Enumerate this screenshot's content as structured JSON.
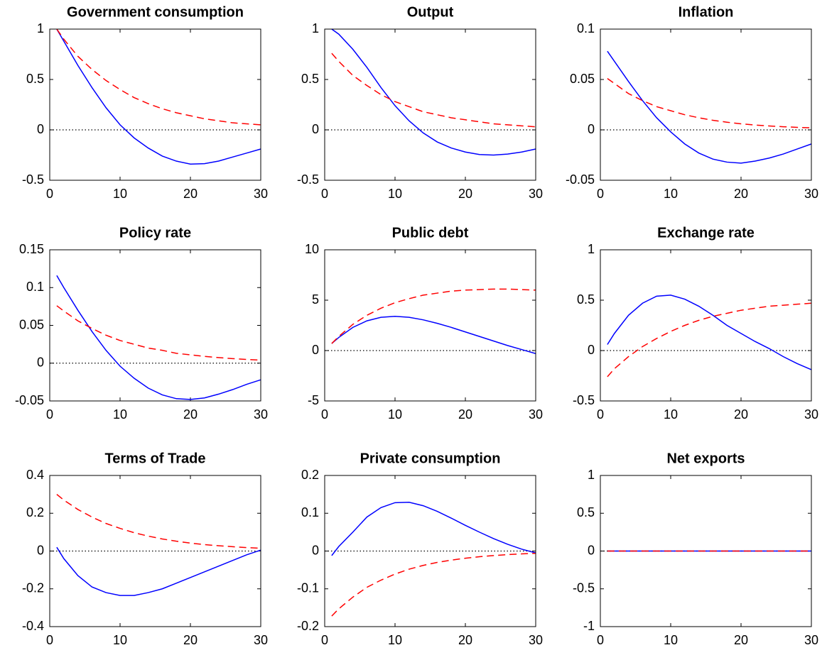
{
  "chart_data": [
    {
      "type": "line",
      "title": "Government consumption",
      "x": [
        1,
        2,
        4,
        6,
        8,
        10,
        12,
        14,
        16,
        18,
        20,
        22,
        24,
        26,
        28,
        30
      ],
      "series": [
        {
          "color": "#0000ff",
          "linestyle": "solid",
          "values": [
            1,
            0.88,
            0.64,
            0.42,
            0.22,
            0.05,
            -0.08,
            -0.18,
            -0.26,
            -0.31,
            -0.34,
            -0.335,
            -0.31,
            -0.27,
            -0.23,
            -0.19
          ]
        },
        {
          "color": "#ff0000",
          "linestyle": "dashed",
          "values": [
            1,
            0.9,
            0.73,
            0.6,
            0.49,
            0.4,
            0.32,
            0.26,
            0.21,
            0.17,
            0.14,
            0.11,
            0.09,
            0.07,
            0.06,
            0.05
          ]
        }
      ],
      "xlim": [
        0,
        30
      ],
      "xticks": [
        0,
        10,
        20,
        30
      ],
      "ylim": [
        -0.5,
        1
      ],
      "yticks": [
        -0.5,
        0,
        0.5,
        1
      ],
      "zero_line": true
    },
    {
      "type": "line",
      "title": "Output",
      "x": [
        1,
        2,
        4,
        6,
        8,
        10,
        12,
        14,
        16,
        18,
        20,
        22,
        24,
        26,
        28,
        30
      ],
      "series": [
        {
          "color": "#0000ff",
          "linestyle": "solid",
          "values": [
            1,
            0.95,
            0.8,
            0.62,
            0.42,
            0.24,
            0.09,
            -0.03,
            -0.12,
            -0.18,
            -0.22,
            -0.245,
            -0.25,
            -0.24,
            -0.22,
            -0.19
          ]
        },
        {
          "color": "#ff0000",
          "linestyle": "dashed",
          "values": [
            0.76,
            0.68,
            0.54,
            0.44,
            0.35,
            0.28,
            0.23,
            0.18,
            0.15,
            0.12,
            0.1,
            0.08,
            0.06,
            0.05,
            0.04,
            0.03
          ]
        }
      ],
      "xlim": [
        0,
        30
      ],
      "xticks": [
        0,
        10,
        20,
        30
      ],
      "ylim": [
        -0.5,
        1
      ],
      "yticks": [
        -0.5,
        0,
        0.5,
        1
      ],
      "zero_line": true
    },
    {
      "type": "line",
      "title": "Inflation",
      "x": [
        1,
        2,
        4,
        6,
        8,
        10,
        12,
        14,
        16,
        18,
        20,
        22,
        24,
        26,
        28,
        30
      ],
      "series": [
        {
          "color": "#0000ff",
          "linestyle": "solid",
          "values": [
            0.078,
            0.068,
            0.048,
            0.029,
            0.012,
            -0.002,
            -0.014,
            -0.023,
            -0.029,
            -0.032,
            -0.033,
            -0.031,
            -0.028,
            -0.024,
            -0.019,
            -0.014
          ]
        },
        {
          "color": "#ff0000",
          "linestyle": "dashed",
          "values": [
            0.051,
            0.046,
            0.036,
            0.029,
            0.023,
            0.019,
            0.015,
            0.012,
            0.0095,
            0.0076,
            0.006,
            0.0048,
            0.0039,
            0.0031,
            0.0025,
            0.002
          ]
        }
      ],
      "xlim": [
        0,
        30
      ],
      "xticks": [
        0,
        10,
        20,
        30
      ],
      "ylim": [
        -0.05,
        0.1
      ],
      "yticks": [
        -0.05,
        0,
        0.05,
        0.1
      ],
      "zero_line": true
    },
    {
      "type": "line",
      "title": "Policy rate",
      "x": [
        1,
        2,
        4,
        6,
        8,
        10,
        12,
        14,
        16,
        18,
        20,
        22,
        24,
        26,
        28,
        30
      ],
      "series": [
        {
          "color": "#0000ff",
          "linestyle": "solid",
          "values": [
            0.116,
            0.1,
            0.07,
            0.042,
            0.017,
            -0.004,
            -0.02,
            -0.033,
            -0.042,
            -0.047,
            -0.048,
            -0.046,
            -0.041,
            -0.035,
            -0.028,
            -0.022
          ]
        },
        {
          "color": "#ff0000",
          "linestyle": "dashed",
          "values": [
            0.076,
            0.069,
            0.056,
            0.046,
            0.037,
            0.03,
            0.025,
            0.02,
            0.017,
            0.013,
            0.011,
            0.009,
            0.0074,
            0.006,
            0.0049,
            0.004
          ]
        }
      ],
      "xlim": [
        0,
        30
      ],
      "xticks": [
        0,
        10,
        20,
        30
      ],
      "ylim": [
        -0.05,
        0.15
      ],
      "yticks": [
        -0.05,
        0,
        0.05,
        0.1,
        0.15
      ],
      "zero_line": true
    },
    {
      "type": "line",
      "title": "Public debt",
      "x": [
        1,
        2,
        4,
        6,
        8,
        10,
        12,
        14,
        16,
        18,
        20,
        22,
        24,
        26,
        28,
        30
      ],
      "series": [
        {
          "color": "#0000ff",
          "linestyle": "solid",
          "values": [
            0.7,
            1.3,
            2.3,
            2.95,
            3.3,
            3.4,
            3.3,
            3.05,
            2.7,
            2.3,
            1.85,
            1.4,
            0.95,
            0.5,
            0.1,
            -0.3
          ]
        },
        {
          "color": "#ff0000",
          "linestyle": "dashed",
          "values": [
            0.7,
            1.4,
            2.6,
            3.5,
            4.2,
            4.75,
            5.15,
            5.5,
            5.7,
            5.9,
            6,
            6.05,
            6.1,
            6.1,
            6.05,
            6
          ]
        }
      ],
      "xlim": [
        0,
        30
      ],
      "xticks": [
        0,
        10,
        20,
        30
      ],
      "ylim": [
        -5,
        10
      ],
      "yticks": [
        -5,
        0,
        5,
        10
      ],
      "zero_line": true
    },
    {
      "type": "line",
      "title": "Exchange rate",
      "x": [
        1,
        2,
        4,
        6,
        8,
        10,
        12,
        14,
        16,
        18,
        20,
        22,
        24,
        26,
        28,
        30
      ],
      "series": [
        {
          "color": "#0000ff",
          "linestyle": "solid",
          "values": [
            0.06,
            0.17,
            0.35,
            0.47,
            0.54,
            0.55,
            0.51,
            0.44,
            0.35,
            0.25,
            0.17,
            0.09,
            0.02,
            -0.06,
            -0.13,
            -0.19
          ]
        },
        {
          "color": "#ff0000",
          "linestyle": "dashed",
          "values": [
            -0.26,
            -0.18,
            -0.06,
            0.04,
            0.12,
            0.19,
            0.25,
            0.3,
            0.34,
            0.37,
            0.4,
            0.42,
            0.44,
            0.45,
            0.46,
            0.47
          ]
        }
      ],
      "xlim": [
        0,
        30
      ],
      "xticks": [
        0,
        10,
        20,
        30
      ],
      "ylim": [
        -0.5,
        1
      ],
      "yticks": [
        -0.5,
        0,
        0.5,
        1
      ],
      "zero_line": true
    },
    {
      "type": "line",
      "title": "Terms of Trade",
      "x": [
        1,
        2,
        4,
        6,
        8,
        10,
        12,
        14,
        16,
        18,
        20,
        22,
        24,
        26,
        28,
        30
      ],
      "series": [
        {
          "color": "#0000ff",
          "linestyle": "solid",
          "values": [
            0.02,
            -0.04,
            -0.13,
            -0.19,
            -0.22,
            -0.235,
            -0.235,
            -0.22,
            -0.2,
            -0.17,
            -0.14,
            -0.11,
            -0.08,
            -0.05,
            -0.02,
            0.005
          ]
        },
        {
          "color": "#ff0000",
          "linestyle": "dashed",
          "values": [
            0.3,
            0.27,
            0.22,
            0.18,
            0.146,
            0.12,
            0.097,
            0.079,
            0.064,
            0.052,
            0.042,
            0.034,
            0.028,
            0.023,
            0.018,
            0.015
          ]
        }
      ],
      "xlim": [
        0,
        30
      ],
      "xticks": [
        0,
        10,
        20,
        30
      ],
      "ylim": [
        -0.4,
        0.4
      ],
      "yticks": [
        -0.4,
        -0.2,
        0,
        0.2,
        0.4
      ],
      "zero_line": true
    },
    {
      "type": "line",
      "title": "Private consumption",
      "x": [
        1,
        2,
        4,
        6,
        8,
        10,
        12,
        14,
        16,
        18,
        20,
        22,
        24,
        26,
        28,
        30
      ],
      "series": [
        {
          "color": "#0000ff",
          "linestyle": "solid",
          "values": [
            -0.012,
            0.012,
            0.05,
            0.09,
            0.115,
            0.128,
            0.129,
            0.12,
            0.105,
            0.087,
            0.068,
            0.05,
            0.033,
            0.018,
            0.005,
            -0.005
          ]
        },
        {
          "color": "#ff0000",
          "linestyle": "dashed",
          "values": [
            -0.172,
            -0.153,
            -0.122,
            -0.096,
            -0.077,
            -0.061,
            -0.048,
            -0.038,
            -0.03,
            -0.024,
            -0.019,
            -0.015,
            -0.012,
            -0.0095,
            -0.0076,
            -0.006
          ]
        }
      ],
      "xlim": [
        0,
        30
      ],
      "xticks": [
        0,
        10,
        20,
        30
      ],
      "ylim": [
        -0.2,
        0.2
      ],
      "yticks": [
        -0.2,
        -0.1,
        0,
        0.1,
        0.2
      ],
      "zero_line": true
    },
    {
      "type": "line",
      "title": "Net exports",
      "x": [
        1,
        2,
        4,
        6,
        8,
        10,
        12,
        14,
        16,
        18,
        20,
        22,
        24,
        26,
        28,
        30
      ],
      "series": [
        {
          "color": "#0000ff",
          "linestyle": "solid",
          "values": [
            0,
            0,
            0,
            0,
            0,
            0,
            0,
            0,
            0,
            0,
            0,
            0,
            0,
            0,
            0,
            0
          ]
        },
        {
          "color": "#ff0000",
          "linestyle": "dashed",
          "values": [
            0,
            0,
            0,
            0,
            0,
            0,
            0,
            0,
            0,
            0,
            0,
            0,
            0,
            0,
            0,
            0
          ]
        }
      ],
      "xlim": [
        0,
        30
      ],
      "xticks": [
        0,
        10,
        20,
        30
      ],
      "ylim": [
        -1,
        1
      ],
      "yticks": [
        -1,
        -0.5,
        0,
        0.5,
        1
      ],
      "zero_line": true
    }
  ]
}
